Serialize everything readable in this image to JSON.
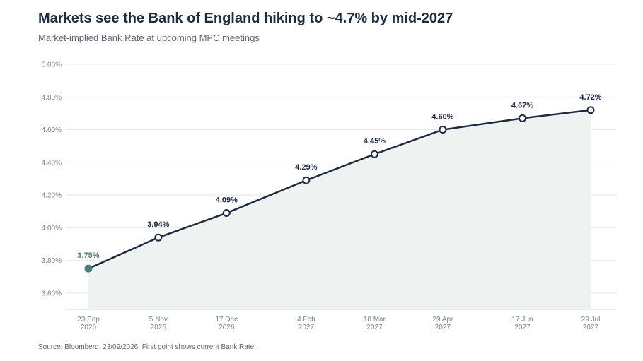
{
  "header": {
    "title": "Markets see the Bank of England hiking to ~4.7% by mid-2027",
    "subtitle": "Market-implied Bank Rate at upcoming MPC meetings"
  },
  "footer": {
    "source": "Source: Bloomberg, 23/09/2026. First point shows current Bank Rate."
  },
  "colors": {
    "line": "#1c2a44",
    "area": "#eef3f2",
    "first_point": "#4e7b78",
    "grid": "#e6e8eb"
  },
  "chart_data": {
    "type": "line",
    "categories": [
      [
        "23 Sep",
        "2026"
      ],
      [
        "5 Nov",
        "2026"
      ],
      [
        "17 Dec",
        "2026"
      ],
      [
        "4 Feb",
        "2027"
      ],
      [
        "18 Mar",
        "2027"
      ],
      [
        "29 Apr",
        "2027"
      ],
      [
        "17 Jun",
        "2027"
      ],
      [
        "29 Jul",
        "2027"
      ]
    ],
    "dates": [
      "2026-09-23",
      "2026-11-05",
      "2026-12-17",
      "2027-02-04",
      "2027-03-18",
      "2027-04-29",
      "2027-06-17",
      "2027-07-29"
    ],
    "values": [
      3.75,
      3.94,
      4.09,
      4.29,
      4.45,
      4.6,
      4.67,
      4.72
    ],
    "data_labels": [
      "3.75%",
      "3.94%",
      "4.09%",
      "4.29%",
      "4.45%",
      "4.60%",
      "4.67%",
      "4.72%"
    ],
    "ylim": [
      3.5,
      5.0
    ],
    "yticks": [
      3.6,
      3.8,
      4.0,
      4.2,
      4.4,
      4.6,
      4.8,
      5.0
    ],
    "ytick_labels": [
      "3.60%",
      "3.80%",
      "4.00%",
      "4.20%",
      "4.40%",
      "4.60%",
      "4.80%",
      "5.00%"
    ],
    "grid": true,
    "area_fill": true,
    "legend": "none"
  }
}
